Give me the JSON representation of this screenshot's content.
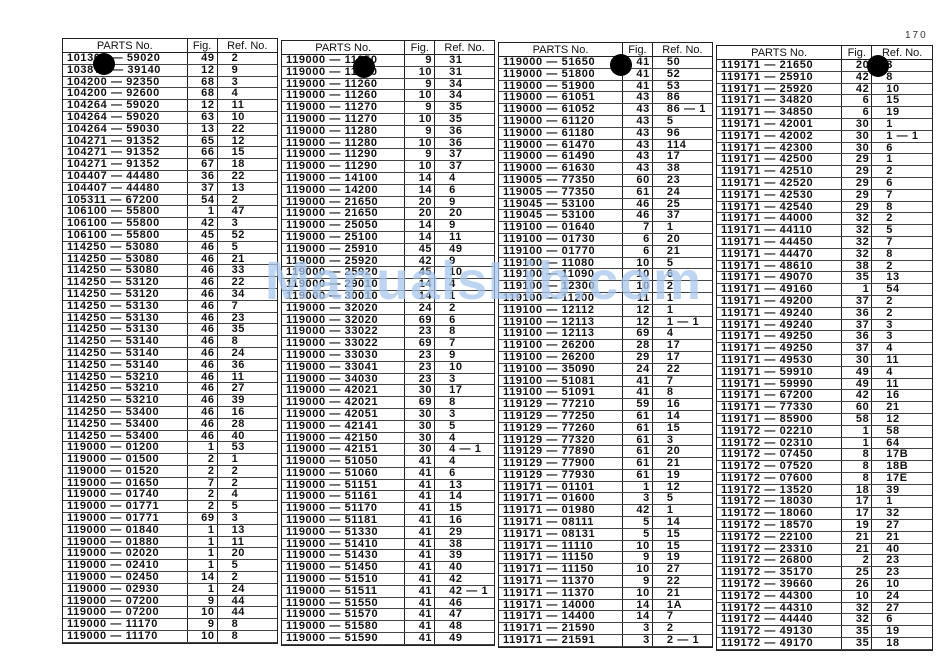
{
  "page_number": "170",
  "watermark": "ManualsLib.com",
  "headers": {
    "parts": "PARTS No.",
    "fig": "Fig.",
    "ref": "Ref. No."
  },
  "tables": [
    [
      [
        "10130?-59020",
        "49",
        "2"
      ],
      [
        "1038??-39140",
        "12",
        "9"
      ],
      [
        "104200-92350",
        "68",
        "3"
      ],
      [
        "104200-92600",
        "68",
        "4"
      ],
      [
        "104264-59020",
        "12",
        "11"
      ],
      [
        "104264-59020",
        "63",
        "10"
      ],
      [
        "104264-59030",
        "13",
        "22"
      ],
      [
        "104271-91352",
        "65",
        "12"
      ],
      [
        "104271-91352",
        "66",
        "15"
      ],
      [
        "104271-91352",
        "67",
        "18"
      ],
      [
        "104407-44480",
        "36",
        "22"
      ],
      [
        "104407-44480",
        "37",
        "13"
      ],
      [
        "105311-67200",
        "54",
        "2"
      ],
      [
        "106100-55800",
        "1",
        "47"
      ],
      [
        "106100-55800",
        "42",
        "3"
      ],
      [
        "106100-55800",
        "45",
        "52"
      ],
      [
        "114250-53080",
        "46",
        "5"
      ],
      [
        "114250-53080",
        "46",
        "21"
      ],
      [
        "114250-53080",
        "46",
        "33"
      ],
      [
        "114250-53120",
        "46",
        "22"
      ],
      [
        "114250-53120",
        "46",
        "34"
      ],
      [
        "114250-53130",
        "46",
        "7"
      ],
      [
        "114250-53130",
        "46",
        "23"
      ],
      [
        "114250-53130",
        "46",
        "35"
      ],
      [
        "114250-53140",
        "46",
        "8"
      ],
      [
        "114250-53140",
        "46",
        "24"
      ],
      [
        "114250-53140",
        "46",
        "36"
      ],
      [
        "114250-53210",
        "46",
        "11"
      ],
      [
        "114250-53210",
        "46",
        "27"
      ],
      [
        "114250-53210",
        "46",
        "39"
      ],
      [
        "114250-53400",
        "46",
        "16"
      ],
      [
        "114250-53400",
        "46",
        "28"
      ],
      [
        "114250-53400",
        "46",
        "40"
      ],
      [
        "119000-01200",
        "1",
        "53"
      ],
      [
        "119000-01500",
        "2",
        "1"
      ],
      [
        "119000-01520",
        "2",
        "2"
      ],
      [
        "119000-01650",
        "7",
        "2"
      ],
      [
        "119000-01740",
        "2",
        "4"
      ],
      [
        "119000-01771",
        "2",
        "5"
      ],
      [
        "119000-01771",
        "69",
        "3"
      ],
      [
        "119000-01840",
        "1",
        "13"
      ],
      [
        "119000-01880",
        "1",
        "11"
      ],
      [
        "119000-02020",
        "1",
        "20"
      ],
      [
        "119000-02410",
        "1",
        "5"
      ],
      [
        "119000-02450",
        "14",
        "2"
      ],
      [
        "119000-02930",
        "1",
        "24"
      ],
      [
        "119000-07200",
        "9",
        "44"
      ],
      [
        "119000-07200",
        "10",
        "44"
      ],
      [
        "119000-11170",
        "9",
        "8"
      ],
      [
        "119000-11170",
        "10",
        "8"
      ]
    ],
    [
      [
        "119000-11250",
        "9",
        "31"
      ],
      [
        "119000-11250",
        "10",
        "31"
      ],
      [
        "119000-11260",
        "9",
        "34"
      ],
      [
        "119000-11260",
        "10",
        "34"
      ],
      [
        "119000-11270",
        "9",
        "35"
      ],
      [
        "119000-11270",
        "10",
        "35"
      ],
      [
        "119000-11280",
        "9",
        "36"
      ],
      [
        "119000-11280",
        "10",
        "36"
      ],
      [
        "119000-11290",
        "9",
        "37"
      ],
      [
        "119000-11290",
        "10",
        "37"
      ],
      [
        "119000-14100",
        "14",
        "4"
      ],
      [
        "119000-14200",
        "14",
        "6"
      ],
      [
        "119000-21650",
        "20",
        "9"
      ],
      [
        "119000-21650",
        "20",
        "20"
      ],
      [
        "119000-25050",
        "14",
        "9"
      ],
      [
        "119000-25100",
        "14",
        "11"
      ],
      [
        "119000-25910",
        "45",
        "49"
      ],
      [
        "119000-25920",
        "42",
        "9"
      ],
      [
        "119000-25920",
        "45",
        "10"
      ],
      [
        "119000-29010",
        "14",
        "4"
      ],
      [
        "119000-30010",
        "14",
        "1"
      ],
      [
        "119000-32020",
        "24",
        "2"
      ],
      [
        "119000-32020",
        "69",
        "6"
      ],
      [
        "119000-33022",
        "23",
        "8"
      ],
      [
        "119000-33022",
        "69",
        "7"
      ],
      [
        "119000-33030",
        "23",
        "9"
      ],
      [
        "119000-33041",
        "23",
        "10"
      ],
      [
        "119000-34030",
        "23",
        "3"
      ],
      [
        "119000-42021",
        "30",
        "17"
      ],
      [
        "119000-42021",
        "69",
        "8"
      ],
      [
        "119000-42051",
        "30",
        "3"
      ],
      [
        "119000-42141",
        "30",
        "5"
      ],
      [
        "119000-42150",
        "30",
        "4"
      ],
      [
        "119000-42151",
        "30",
        "4-1"
      ],
      [
        "119000-51050",
        "41",
        "4"
      ],
      [
        "119000-51060",
        "41",
        "6"
      ],
      [
        "119000-51151",
        "41",
        "13"
      ],
      [
        "119000-51161",
        "41",
        "14"
      ],
      [
        "119000-51170",
        "41",
        "15"
      ],
      [
        "119000-51181",
        "41",
        "16"
      ],
      [
        "119000-51330",
        "41",
        "29"
      ],
      [
        "119000-51410",
        "41",
        "38"
      ],
      [
        "119000-51430",
        "41",
        "39"
      ],
      [
        "119000-51450",
        "41",
        "40"
      ],
      [
        "119000-51510",
        "41",
        "42"
      ],
      [
        "119000-51511",
        "41",
        "42-1"
      ],
      [
        "119000-51550",
        "41",
        "46"
      ],
      [
        "119000-51570",
        "41",
        "47"
      ],
      [
        "119000-51580",
        "41",
        "48"
      ],
      [
        "119000-51590",
        "41",
        "49"
      ]
    ],
    [
      [
        "119000-51650",
        "41",
        "50"
      ],
      [
        "119000-51800",
        "41",
        "52"
      ],
      [
        "119000-51900",
        "41",
        "53"
      ],
      [
        "119000-61051",
        "43",
        "86"
      ],
      [
        "119000-61052",
        "43",
        "86-1"
      ],
      [
        "119000-61120",
        "43",
        "5"
      ],
      [
        "119000-61180",
        "43",
        "96"
      ],
      [
        "119000-61470",
        "43",
        "114"
      ],
      [
        "119000-61490",
        "43",
        "17"
      ],
      [
        "119000-61630",
        "43",
        "38"
      ],
      [
        "119005-77350",
        "60",
        "23"
      ],
      [
        "119005-77350",
        "61",
        "24"
      ],
      [
        "119045-53100",
        "46",
        "25"
      ],
      [
        "119045-53100",
        "46",
        "37"
      ],
      [
        "119100-01640",
        "7",
        "1"
      ],
      [
        "119100-01730",
        "6",
        "20"
      ],
      [
        "119100-01770",
        "6",
        "21"
      ],
      [
        "119100-11080",
        "10",
        "5"
      ],
      [
        "119100-11090",
        "10",
        "6"
      ],
      [
        "119100-12300",
        "10",
        "2"
      ],
      [
        "119100-11200",
        "11",
        "1"
      ],
      [
        "119100-12112",
        "12",
        "1"
      ],
      [
        "119100-12113",
        "12",
        "1-1"
      ],
      [
        "119100-12113",
        "69",
        "4"
      ],
      [
        "119100-26200",
        "28",
        "17"
      ],
      [
        "119100-26200",
        "29",
        "17"
      ],
      [
        "119100-35090",
        "24",
        "22"
      ],
      [
        "119100-51081",
        "41",
        "7"
      ],
      [
        "119100-51091",
        "41",
        "8"
      ],
      [
        "119129-77210",
        "59",
        "16"
      ],
      [
        "119129-77250",
        "61",
        "14"
      ],
      [
        "119129-77260",
        "61",
        "15"
      ],
      [
        "119129-77320",
        "61",
        "3"
      ],
      [
        "119129-77890",
        "61",
        "20"
      ],
      [
        "119129-77900",
        "61",
        "21"
      ],
      [
        "119129-77930",
        "61",
        "19"
      ],
      [
        "119171-01101",
        "1",
        "12"
      ],
      [
        "119171-01600",
        "3",
        "5"
      ],
      [
        "119171-01980",
        "42",
        "1"
      ],
      [
        "119171-08111",
        "5",
        "14"
      ],
      [
        "119171-08131",
        "5",
        "15"
      ],
      [
        "119171-11110",
        "10",
        "15"
      ],
      [
        "119171-11150",
        "9",
        "19"
      ],
      [
        "119171-11150",
        "10",
        "27"
      ],
      [
        "119171-11370",
        "9",
        "22"
      ],
      [
        "119171-11370",
        "10",
        "21"
      ],
      [
        "119171-14000",
        "14",
        "1A"
      ],
      [
        "119171-14400",
        "14",
        "7"
      ],
      [
        "119171-21590",
        "3",
        "2"
      ],
      [
        "119171-21591",
        "3",
        "2-1"
      ]
    ],
    [
      [
        "119171-21650",
        "20",
        "3"
      ],
      [
        "119171-25910",
        "42",
        "8"
      ],
      [
        "119171-25920",
        "42",
        "10"
      ],
      [
        "119171-34820",
        "6",
        "15"
      ],
      [
        "119171-34850",
        "6",
        "19"
      ],
      [
        "119171-42001",
        "30",
        "1"
      ],
      [
        "119171-42002",
        "30",
        "1-1"
      ],
      [
        "119171-42300",
        "30",
        "6"
      ],
      [
        "119171-42500",
        "29",
        "1"
      ],
      [
        "119171-42510",
        "29",
        "2"
      ],
      [
        "119171-42520",
        "29",
        "6"
      ],
      [
        "119171-42530",
        "29",
        "7"
      ],
      [
        "119171-42540",
        "29",
        "8"
      ],
      [
        "119171-44000",
        "32",
        "2"
      ],
      [
        "119171-44110",
        "32",
        "5"
      ],
      [
        "119171-44450",
        "32",
        "7"
      ],
      [
        "119171-44470",
        "32",
        "8"
      ],
      [
        "119171-48610",
        "38",
        "2"
      ],
      [
        "119171-49070",
        "35",
        "13"
      ],
      [
        "119171-49160",
        "1",
        "54"
      ],
      [
        "119171-49200",
        "37",
        "2"
      ],
      [
        "119171-49240",
        "36",
        "2"
      ],
      [
        "119171-49240",
        "37",
        "3"
      ],
      [
        "119171-49250",
        "36",
        "3"
      ],
      [
        "119171-49250",
        "37",
        "4"
      ],
      [
        "119171-49530",
        "30",
        "11"
      ],
      [
        "119171-59910",
        "49",
        "4"
      ],
      [
        "119171-59990",
        "49",
        "11"
      ],
      [
        "119171-67200",
        "42",
        "16"
      ],
      [
        "119171-77330",
        "60",
        "21"
      ],
      [
        "119171-85900",
        "58",
        "12"
      ],
      [
        "119172-02210",
        "1",
        "58"
      ],
      [
        "119172-02310",
        "1",
        "64"
      ],
      [
        "119172-07450",
        "8",
        "17B"
      ],
      [
        "119172-07520",
        "8",
        "18B"
      ],
      [
        "119172-07600",
        "8",
        "17E"
      ],
      [
        "119172-13520",
        "18",
        "39"
      ],
      [
        "119172-18030",
        "17",
        "1"
      ],
      [
        "119172-18060",
        "17",
        "32"
      ],
      [
        "119172-18570",
        "19",
        "27"
      ],
      [
        "119172-22100",
        "21",
        "21"
      ],
      [
        "119172-23310",
        "21",
        "40"
      ],
      [
        "119172-26800",
        "2",
        "23"
      ],
      [
        "119172-35170",
        "25",
        "23"
      ],
      [
        "119172-39660",
        "26",
        "10"
      ],
      [
        "119172-44300",
        "10",
        "24"
      ],
      [
        "119172-44310",
        "32",
        "27"
      ],
      [
        "119172-44440",
        "32",
        "6"
      ],
      [
        "119172-49130",
        "35",
        "19"
      ],
      [
        "119172-49170",
        "35",
        "18"
      ]
    ]
  ]
}
